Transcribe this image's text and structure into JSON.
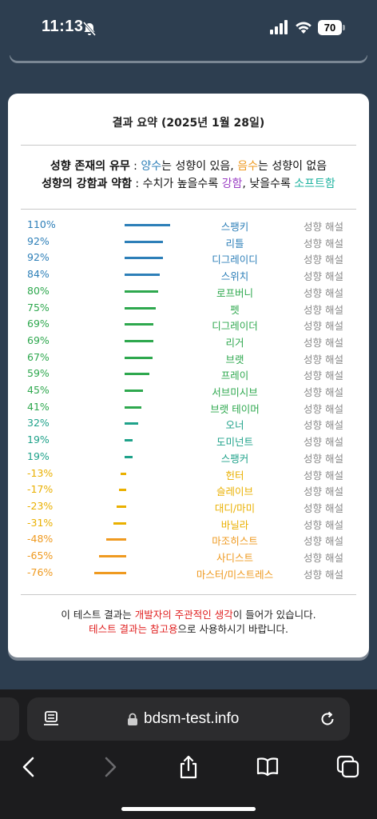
{
  "status": {
    "time": "11:13",
    "battery": "70"
  },
  "card": {
    "title": "결과 요약 (2025년 1월 28일)",
    "legend_line1": {
      "bold": "성향 존재의 유무",
      "colon": " : ",
      "pos_word": "양수",
      "mid1": "는 성향이 있음, ",
      "neg_word": "음수",
      "mid2": "는 성향이 없음"
    },
    "legend_line2": {
      "bold": "성향의 강함과 약함",
      "colon": " : 수치가 높을수록 ",
      "strong_word": "강함",
      "mid": ", 낮을수록 ",
      "soft_word": "소프트함"
    },
    "rows": [
      {
        "pct": "110%",
        "value": 110,
        "label": "스팽키",
        "explain": "성향 해설",
        "color": "#2d7fb8"
      },
      {
        "pct": "92%",
        "value": 92,
        "label": "리틀",
        "explain": "성향 해설",
        "color": "#2d7fb8"
      },
      {
        "pct": "92%",
        "value": 92,
        "label": "디그레이디",
        "explain": "성향 해설",
        "color": "#2d7fb8"
      },
      {
        "pct": "84%",
        "value": 84,
        "label": "스위치",
        "explain": "성향 해설",
        "color": "#2d7fb8"
      },
      {
        "pct": "80%",
        "value": 80,
        "label": "로프버니",
        "explain": "성향 해설",
        "color": "#2ea84e"
      },
      {
        "pct": "75%",
        "value": 75,
        "label": "펫",
        "explain": "성향 해설",
        "color": "#2ea84e"
      },
      {
        "pct": "69%",
        "value": 69,
        "label": "디그레이더",
        "explain": "성향 해설",
        "color": "#2ea84e"
      },
      {
        "pct": "69%",
        "value": 69,
        "label": "리거",
        "explain": "성향 해설",
        "color": "#2ea84e"
      },
      {
        "pct": "67%",
        "value": 67,
        "label": "브랫",
        "explain": "성향 해설",
        "color": "#2ea84e"
      },
      {
        "pct": "59%",
        "value": 59,
        "label": "프레이",
        "explain": "성향 해설",
        "color": "#2ea84e"
      },
      {
        "pct": "45%",
        "value": 45,
        "label": "서브미시브",
        "explain": "성향 해설",
        "color": "#2ea84e"
      },
      {
        "pct": "41%",
        "value": 41,
        "label": "브랫 테이머",
        "explain": "성향 해설",
        "color": "#2ea84e"
      },
      {
        "pct": "32%",
        "value": 32,
        "label": "오너",
        "explain": "성향 해설",
        "color": "#1fa28a"
      },
      {
        "pct": "19%",
        "value": 19,
        "label": "도미넌트",
        "explain": "성향 해설",
        "color": "#1fa28a"
      },
      {
        "pct": "19%",
        "value": 19,
        "label": "스팽커",
        "explain": "성향 해설",
        "color": "#1fa28a"
      },
      {
        "pct": "-13%",
        "value": -13,
        "label": "헌터",
        "explain": "성향 해설",
        "color": "#eab000"
      },
      {
        "pct": "-17%",
        "value": -17,
        "label": "슬레이브",
        "explain": "성향 해설",
        "color": "#eab000"
      },
      {
        "pct": "-23%",
        "value": -23,
        "label": "대디/마미",
        "explain": "성향 해설",
        "color": "#eab000"
      },
      {
        "pct": "-31%",
        "value": -31,
        "label": "바닐라",
        "explain": "성향 해설",
        "color": "#eab000"
      },
      {
        "pct": "-48%",
        "value": -48,
        "label": "마조히스트",
        "explain": "성향 해설",
        "color": "#ef9a20"
      },
      {
        "pct": "-65%",
        "value": -65,
        "label": "사디스트",
        "explain": "성향 해설",
        "color": "#ef9a20"
      },
      {
        "pct": "-76%",
        "value": -76,
        "label": "마스터/미스트레스",
        "explain": "성향 해설",
        "color": "#ef9a20"
      }
    ],
    "footnote": {
      "l1_a": "이 테스트 결과는 ",
      "l1_red": "개발자의 주관적인 생각",
      "l1_b": "이 들어가 있습니다.",
      "l2_red": "테스트 결과는 참고용",
      "l2_b": "으로 사용하시기 바랍니다."
    }
  },
  "browser": {
    "url": "bdsm-test.info"
  },
  "colors": {
    "positive": "#2d7fb8",
    "negative": "#ef9a20",
    "strong": "#9b3fc4",
    "soft": "#1fb3a0",
    "red": "#e02020"
  }
}
